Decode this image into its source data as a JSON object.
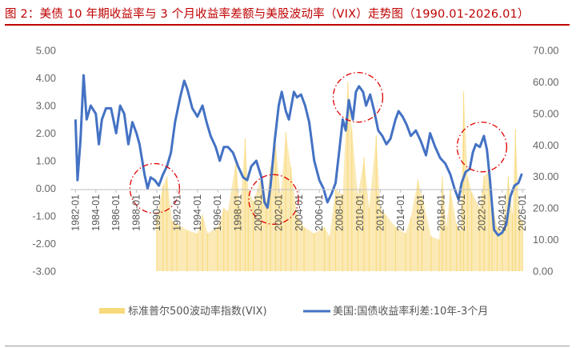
{
  "header": {
    "title": "图 2：美债 10 年期收益率与 3 个月收益率差额与美股波动率（VIX）走势图（1990.01-2026.01）"
  },
  "colors": {
    "title": "#c00000",
    "spread_line": "#4472c4",
    "vix_area": "#f8d97a",
    "circle": "#e00000"
  },
  "chart_data": {
    "type": "line",
    "x_tick_labels": [
      "1982-01",
      "1984-01",
      "1986-01",
      "1988-01",
      "1990-01",
      "1992-01",
      "1994-01",
      "1996-01",
      "1998-01",
      "2000-01",
      "2002-01",
      "2004-01",
      "2006-01",
      "2008-01",
      "2010-01",
      "2012-01",
      "2014-01",
      "2016-01",
      "2018-01",
      "2020-01",
      "2022-01",
      "2024-01",
      "2026-01"
    ],
    "x_tick_years": [
      1982,
      1984,
      1986,
      1988,
      1990,
      1992,
      1994,
      1996,
      1998,
      2000,
      2002,
      2004,
      2006,
      2008,
      2010,
      2012,
      2014,
      2016,
      2018,
      2020,
      2022,
      2024,
      2026
    ],
    "x_range": [
      1981.5,
      2026.3
    ],
    "y_left": {
      "ticks": [
        "5.00",
        "4.00",
        "3.00",
        "2.00",
        "1.00",
        "0.00",
        "-1.00",
        "-2.00",
        "-3.00"
      ],
      "range": [
        -3,
        5
      ]
    },
    "y_right": {
      "ticks": [
        "70.00",
        "60.00",
        "50.00",
        "40.00",
        "30.00",
        "20.00",
        "10.00",
        "0.00"
      ],
      "range": [
        0,
        70
      ]
    },
    "series": [
      {
        "name": "标准普尔500波动率指数(VIX)",
        "type": "area",
        "axis": "right",
        "points": [
          [
            1990.0,
            17
          ],
          [
            1990.6,
            27
          ],
          [
            1991.0,
            30
          ],
          [
            1991.5,
            16
          ],
          [
            1992.0,
            15
          ],
          [
            1993.0,
            13
          ],
          [
            1994.0,
            12
          ],
          [
            1994.5,
            18
          ],
          [
            1995.0,
            12
          ],
          [
            1996.0,
            14
          ],
          [
            1996.6,
            20
          ],
          [
            1997.0,
            19
          ],
          [
            1997.8,
            35
          ],
          [
            1998.2,
            20
          ],
          [
            1998.7,
            42
          ],
          [
            1999.0,
            26
          ],
          [
            1999.5,
            22
          ],
          [
            2000.3,
            30
          ],
          [
            2000.8,
            22
          ],
          [
            2001.2,
            33
          ],
          [
            2001.7,
            40
          ],
          [
            2002.2,
            24
          ],
          [
            2002.7,
            44
          ],
          [
            2003.2,
            33
          ],
          [
            2003.8,
            18
          ],
          [
            2004.5,
            14
          ],
          [
            2005.5,
            12
          ],
          [
            2006.5,
            14
          ],
          [
            2007.0,
            11
          ],
          [
            2007.6,
            26
          ],
          [
            2008.3,
            24
          ],
          [
            2008.8,
            60
          ],
          [
            2009.2,
            45
          ],
          [
            2009.8,
            24
          ],
          [
            2010.4,
            36
          ],
          [
            2010.9,
            20
          ],
          [
            2011.6,
            43
          ],
          [
            2012.0,
            20
          ],
          [
            2012.5,
            18
          ],
          [
            2013.5,
            14
          ],
          [
            2014.5,
            12
          ],
          [
            2015.0,
            17
          ],
          [
            2015.7,
            29
          ],
          [
            2016.1,
            24
          ],
          [
            2017.0,
            11
          ],
          [
            2017.8,
            10
          ],
          [
            2018.1,
            30
          ],
          [
            2018.5,
            14
          ],
          [
            2018.9,
            26
          ],
          [
            2019.5,
            15
          ],
          [
            2019.9,
            13
          ],
          [
            2020.2,
            57
          ],
          [
            2020.6,
            30
          ],
          [
            2021.0,
            25
          ],
          [
            2021.8,
            20
          ],
          [
            2022.2,
            30
          ],
          [
            2022.7,
            32
          ],
          [
            2023.0,
            22
          ],
          [
            2023.5,
            14
          ],
          [
            2024.0,
            13
          ],
          [
            2024.6,
            30
          ],
          [
            2025.0,
            18
          ],
          [
            2025.3,
            45
          ],
          [
            2025.7,
            17
          ],
          [
            2026.0,
            16
          ]
        ]
      },
      {
        "name": "美国:国债收益率利差:10年-3个月",
        "type": "line",
        "axis": "left",
        "points": [
          [
            1982.0,
            2.5
          ],
          [
            1982.2,
            0.3
          ],
          [
            1982.5,
            1.8
          ],
          [
            1982.8,
            4.1
          ],
          [
            1983.1,
            2.5
          ],
          [
            1983.5,
            3.0
          ],
          [
            1984.0,
            2.7
          ],
          [
            1984.3,
            1.6
          ],
          [
            1984.6,
            2.5
          ],
          [
            1985.0,
            2.9
          ],
          [
            1985.5,
            2.9
          ],
          [
            1986.0,
            2.0
          ],
          [
            1986.4,
            3.0
          ],
          [
            1986.8,
            2.7
          ],
          [
            1987.2,
            1.6
          ],
          [
            1987.6,
            2.4
          ],
          [
            1988.0,
            2.0
          ],
          [
            1988.3,
            1.6
          ],
          [
            1988.8,
            0.5
          ],
          [
            1989.1,
            0.0
          ],
          [
            1989.4,
            0.4
          ],
          [
            1989.8,
            0.3
          ],
          [
            1990.2,
            0.1
          ],
          [
            1990.6,
            0.5
          ],
          [
            1991.0,
            0.8
          ],
          [
            1991.4,
            1.3
          ],
          [
            1991.8,
            2.4
          ],
          [
            1992.3,
            3.3
          ],
          [
            1992.7,
            3.9
          ],
          [
            1993.0,
            3.6
          ],
          [
            1993.5,
            2.9
          ],
          [
            1994.0,
            2.6
          ],
          [
            1994.5,
            3.0
          ],
          [
            1994.9,
            2.4
          ],
          [
            1995.3,
            1.9
          ],
          [
            1995.8,
            1.5
          ],
          [
            1996.2,
            1.0
          ],
          [
            1996.6,
            1.5
          ],
          [
            1997.0,
            1.5
          ],
          [
            1997.5,
            1.3
          ],
          [
            1998.0,
            0.8
          ],
          [
            1998.5,
            0.4
          ],
          [
            1998.9,
            0.3
          ],
          [
            1999.3,
            0.8
          ],
          [
            1999.8,
            1.0
          ],
          [
            2000.3,
            0.4
          ],
          [
            2000.6,
            -0.5
          ],
          [
            2000.9,
            -0.7
          ],
          [
            2001.2,
            0.1
          ],
          [
            2001.6,
            1.7
          ],
          [
            2002.0,
            3.0
          ],
          [
            2002.3,
            3.5
          ],
          [
            2002.7,
            2.8
          ],
          [
            2003.0,
            2.5
          ],
          [
            2003.5,
            3.5
          ],
          [
            2003.8,
            3.3
          ],
          [
            2004.2,
            3.4
          ],
          [
            2004.6,
            3.0
          ],
          [
            2005.0,
            2.4
          ],
          [
            2005.5,
            1.0
          ],
          [
            2006.0,
            0.3
          ],
          [
            2006.4,
            0.0
          ],
          [
            2006.8,
            -0.5
          ],
          [
            2007.2,
            -0.2
          ],
          [
            2007.6,
            0.2
          ],
          [
            2008.0,
            1.5
          ],
          [
            2008.3,
            2.5
          ],
          [
            2008.6,
            2.1
          ],
          [
            2008.9,
            3.2
          ],
          [
            2009.3,
            2.5
          ],
          [
            2009.6,
            3.5
          ],
          [
            2009.9,
            3.7
          ],
          [
            2010.3,
            3.5
          ],
          [
            2010.6,
            3.0
          ],
          [
            2011.0,
            3.4
          ],
          [
            2011.4,
            2.8
          ],
          [
            2011.8,
            2.1
          ],
          [
            2012.2,
            1.9
          ],
          [
            2012.6,
            1.6
          ],
          [
            2013.0,
            1.8
          ],
          [
            2013.5,
            2.5
          ],
          [
            2013.8,
            2.8
          ],
          [
            2014.2,
            2.6
          ],
          [
            2014.6,
            2.3
          ],
          [
            2015.0,
            1.9
          ],
          [
            2015.5,
            2.1
          ],
          [
            2016.0,
            1.7
          ],
          [
            2016.5,
            1.2
          ],
          [
            2016.9,
            2.0
          ],
          [
            2017.4,
            1.5
          ],
          [
            2017.9,
            1.1
          ],
          [
            2018.4,
            0.9
          ],
          [
            2018.9,
            0.5
          ],
          [
            2019.3,
            0.0
          ],
          [
            2019.7,
            -0.4
          ],
          [
            2020.0,
            0.2
          ],
          [
            2020.4,
            0.6
          ],
          [
            2020.8,
            0.7
          ],
          [
            2021.1,
            1.3
          ],
          [
            2021.4,
            1.6
          ],
          [
            2021.8,
            1.5
          ],
          [
            2022.2,
            1.9
          ],
          [
            2022.5,
            1.4
          ],
          [
            2022.8,
            0.3
          ],
          [
            2023.2,
            -1.5
          ],
          [
            2023.6,
            -1.7
          ],
          [
            2024.0,
            -1.6
          ],
          [
            2024.4,
            -1.3
          ],
          [
            2024.8,
            -0.3
          ],
          [
            2025.2,
            0.1
          ],
          [
            2025.6,
            0.2
          ],
          [
            2025.9,
            0.5
          ],
          [
            2026.0,
            0.5
          ]
        ]
      }
    ],
    "annotations": [
      {
        "type": "circle",
        "cx_year": 1989.8,
        "cy": 0.0
      },
      {
        "type": "circle",
        "cx_year": 2001.5,
        "cy": -0.4
      },
      {
        "type": "circle",
        "cx_year": 2009.8,
        "cy": 3.3
      },
      {
        "type": "circle",
        "cx_year": 2022.0,
        "cy": 1.5
      }
    ],
    "legend_position": "bottom",
    "grid": false
  }
}
